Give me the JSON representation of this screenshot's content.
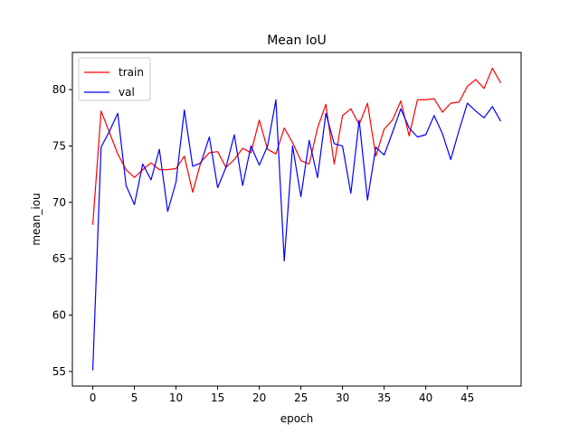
{
  "chart_data": {
    "type": "line",
    "title": "Mean IoU",
    "xlabel": "epoch",
    "ylabel": "mean_iou",
    "xlim": [
      -2.45,
      51.45
    ],
    "ylim": [
      53.7,
      83.3
    ],
    "xticks": [
      0,
      5,
      10,
      15,
      20,
      25,
      30,
      35,
      40,
      45
    ],
    "yticks": [
      55,
      60,
      65,
      70,
      75,
      80
    ],
    "grid": false,
    "legend_position": "top-left",
    "x": [
      0,
      1,
      2,
      3,
      4,
      5,
      6,
      7,
      8,
      9,
      10,
      11,
      12,
      13,
      14,
      15,
      16,
      17,
      18,
      19,
      20,
      21,
      22,
      23,
      24,
      25,
      26,
      27,
      28,
      29,
      30,
      31,
      32,
      33,
      34,
      35,
      36,
      37,
      38,
      39,
      40,
      41,
      42,
      43,
      44,
      45,
      46,
      47,
      48,
      49
    ],
    "series": [
      {
        "name": "train",
        "color": "#ff0000",
        "values": [
          68.0,
          78.1,
          76.2,
          74.3,
          72.9,
          72.2,
          72.9,
          73.5,
          72.9,
          72.9,
          73.0,
          74.1,
          70.9,
          73.6,
          74.4,
          74.5,
          73.1,
          73.8,
          74.8,
          74.4,
          77.3,
          74.7,
          74.3,
          76.6,
          75.3,
          73.7,
          73.4,
          76.6,
          78.7,
          73.4,
          77.7,
          78.3,
          76.9,
          78.8,
          74.1,
          76.5,
          77.3,
          79.0,
          75.9,
          79.1,
          79.1,
          79.2,
          78.0,
          78.8,
          78.9,
          80.3,
          80.9,
          80.1,
          81.9,
          80.6
        ]
      },
      {
        "name": "val",
        "color": "#0000ff",
        "values": [
          55.1,
          74.9,
          76.3,
          77.9,
          71.5,
          69.8,
          73.4,
          72.0,
          74.7,
          69.2,
          71.8,
          78.2,
          73.2,
          73.5,
          75.8,
          71.3,
          73.1,
          76.0,
          71.5,
          75.0,
          73.3,
          75.0,
          79.1,
          64.8,
          75.0,
          70.5,
          75.5,
          72.2,
          77.9,
          75.2,
          75.0,
          70.8,
          77.3,
          70.2,
          74.9,
          74.2,
          76.2,
          78.3,
          76.6,
          75.8,
          76.0,
          77.7,
          76.1,
          73.8,
          76.4,
          78.8,
          78.1,
          77.5,
          78.5,
          77.2
        ]
      }
    ]
  }
}
